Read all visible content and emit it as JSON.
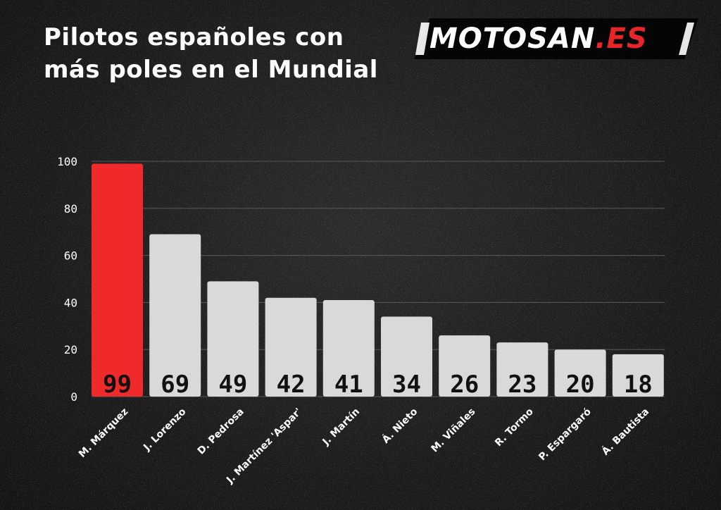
{
  "header": {
    "title_line1": "Pilotos españoles con",
    "title_line2": "más poles en el Mundial"
  },
  "logo": {
    "main": "MOTOSAN",
    "ext": ".ES"
  },
  "colors": {
    "highlight": "#f02a2a",
    "bar": "#d9d9d9",
    "bar_label": "#111111",
    "axis_text": "#ffffff"
  },
  "chart_data": {
    "type": "bar",
    "categories": [
      "M. Márquez",
      "J. Lorenzo",
      "D. Pedrosa",
      "J. Martínez 'Aspar'",
      "J. Martín",
      "Á. Nieto",
      "M. Viñales",
      "R. Tormo",
      "P. Espargaró",
      "Á. Bautista"
    ],
    "values": [
      99,
      69,
      49,
      42,
      41,
      34,
      26,
      23,
      20,
      18
    ],
    "highlight_index": 0,
    "ylim": [
      0,
      100
    ],
    "yticks": [
      0,
      20,
      40,
      60,
      80,
      100
    ],
    "grid": true,
    "data_labels": true
  }
}
